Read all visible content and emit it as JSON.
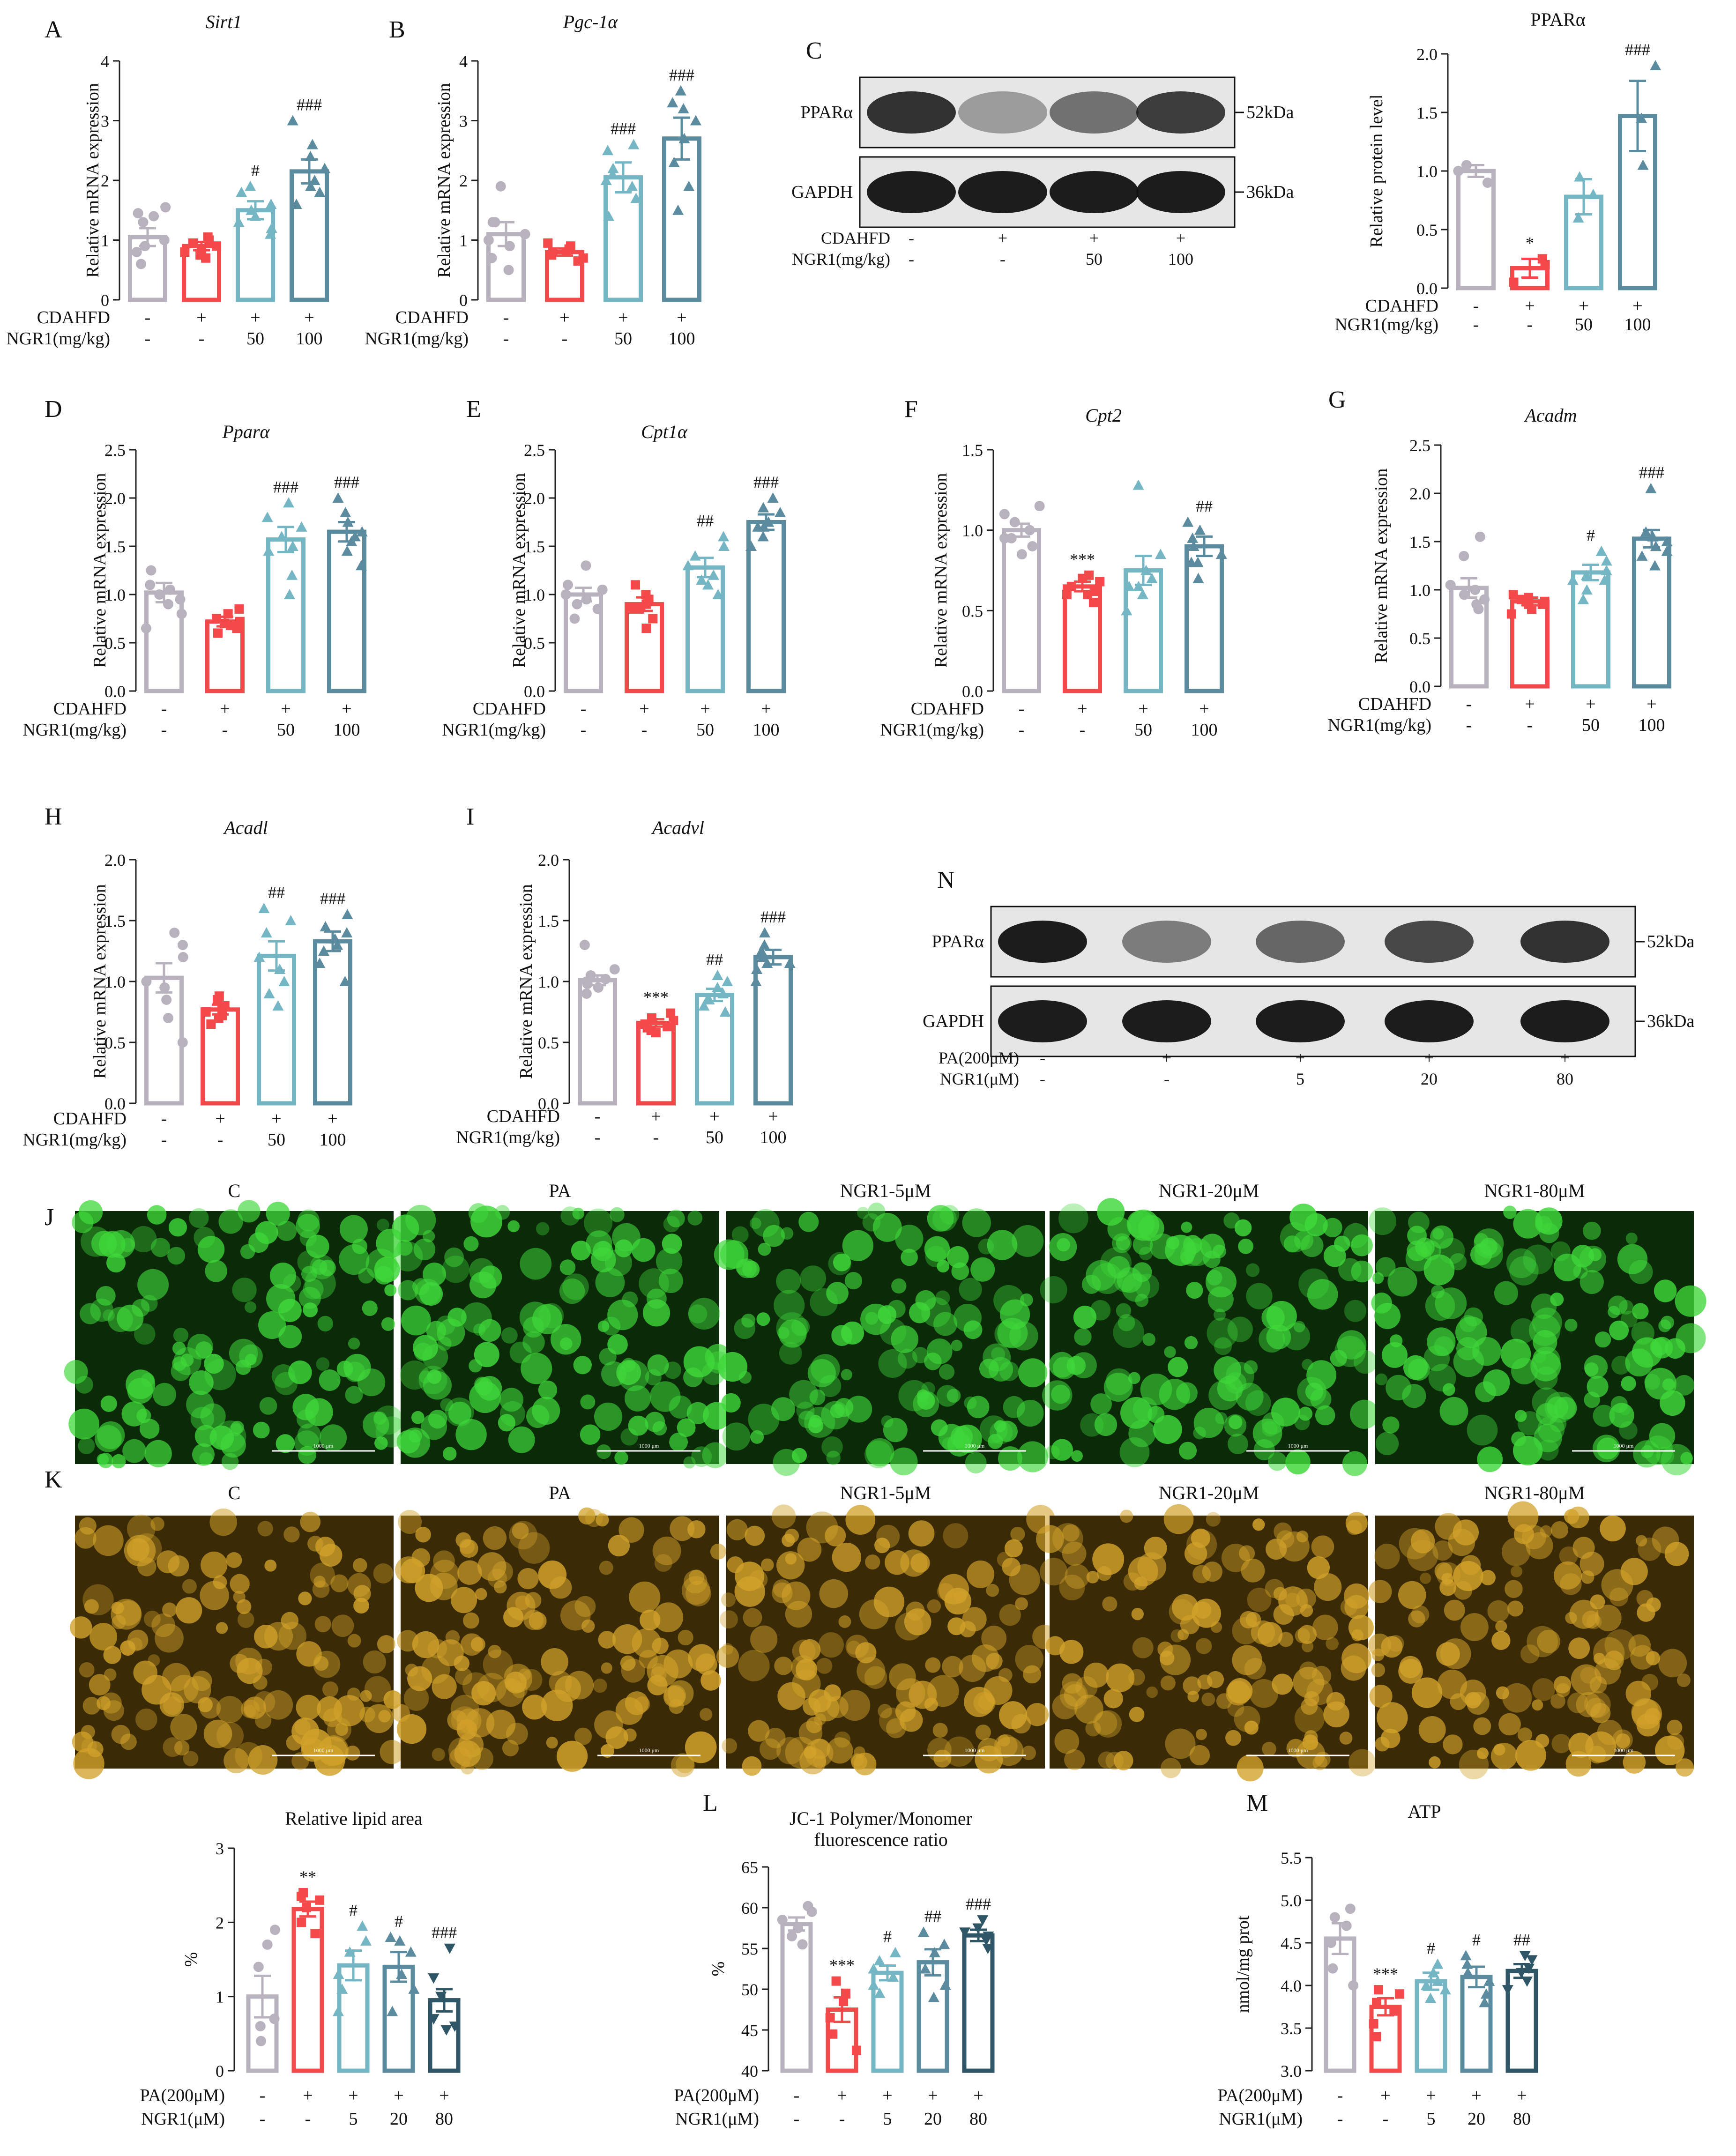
{
  "colors": {
    "c1": "#b7b2be",
    "c2": "#f4494a",
    "c3": "#75b6c4",
    "c4": "#5b8b9e",
    "c5": "#2e5666",
    "axis": "#222222"
  },
  "icons": {
    "fluorescence": "microscopy-image"
  },
  "mouse_cond": {
    "row1_label": "CDAHFD",
    "row2_label": "NGR1(mg/kg)",
    "row1": [
      "-",
      "+",
      "+",
      "+"
    ],
    "row2": [
      "-",
      "-",
      "50",
      "100"
    ]
  },
  "cell_cond": {
    "row1_label": "PA(200μM)",
    "row2_label": "NGR1(μM)",
    "row1": [
      "-",
      "+",
      "+",
      "+",
      "+"
    ],
    "row2": [
      "-",
      "-",
      "5",
      "20",
      "80"
    ]
  },
  "blot_c": {
    "letter": "C",
    "rows": [
      "PPARα",
      "GAPDH"
    ],
    "kda": [
      "52kDa",
      "36kDa"
    ],
    "cond_row1_label": "CDAHFD",
    "cond_row2_label": "NGR1(mg/kg)",
    "cond_row1": [
      "-",
      "+",
      "+",
      "+"
    ],
    "cond_row2": [
      "-",
      "-",
      "50",
      "100"
    ]
  },
  "blot_n": {
    "letter": "N",
    "rows": [
      "PPARα",
      "GAPDH"
    ],
    "kda": [
      "52kDa",
      "36kDa"
    ],
    "cond_row1_label": "PA(200μM)",
    "cond_row2_label": "NGR1(μM)",
    "cond_row1": [
      "-",
      "+",
      "+",
      "+",
      "+"
    ],
    "cond_row2": [
      "-",
      "-",
      "5",
      "20",
      "80"
    ]
  },
  "image_panels": [
    {
      "letter": "J",
      "labels": [
        "C",
        "PA",
        "NGR1-5μM",
        "NGR1-20μM",
        "NGR1-80μM"
      ],
      "scale_text": "1000 μm",
      "base": "#0a2a08",
      "accent": "#3fd83a"
    },
    {
      "letter": "K",
      "labels": [
        "C",
        "PA",
        "NGR1-5μM",
        "NGR1-20μM",
        "NGR1-80μM"
      ],
      "scale_text": "1000 μm",
      "base": "#3a2a06",
      "accent": "#d2a22a"
    }
  ],
  "chart_data": [
    {
      "id": "A",
      "type": "bar",
      "title": "Sirt1",
      "title_italic": true,
      "ylabel": "Relative mRNA expression",
      "ylim": [
        0,
        4
      ],
      "ticks": [
        "0",
        "1",
        "2",
        "3",
        "4"
      ],
      "values": [
        1.05,
        0.9,
        1.5,
        2.15
      ],
      "errors": [
        0.15,
        0.07,
        0.15,
        0.2
      ],
      "sig": [
        "",
        "",
        "#",
        "###"
      ],
      "points": [
        [
          0.6,
          0.8,
          1.0,
          1.3,
          1.4,
          1.45,
          1.55,
          0.9
        ],
        [
          0.7,
          0.8,
          0.85,
          0.9,
          0.95,
          1.0,
          1.05,
          0.75
        ],
        [
          1.1,
          1.2,
          1.3,
          1.5,
          1.6,
          1.8,
          1.9,
          1.4
        ],
        [
          1.6,
          1.8,
          2.0,
          2.2,
          2.4,
          2.6,
          3.0,
          1.9
        ]
      ],
      "conditions": "mouse"
    },
    {
      "id": "B",
      "type": "bar",
      "title": "Pgc-1α",
      "title_italic": true,
      "ylabel": "Relative mRNA expression",
      "ylim": [
        0,
        4
      ],
      "ticks": [
        "0",
        "1",
        "2",
        "3",
        "4"
      ],
      "values": [
        1.1,
        0.8,
        2.05,
        2.7
      ],
      "errors": [
        0.2,
        0.06,
        0.25,
        0.35
      ],
      "sig": [
        "",
        "",
        "###",
        "###"
      ],
      "points": [
        [
          0.5,
          0.7,
          0.9,
          1.0,
          1.1,
          1.3,
          1.9,
          1.3
        ],
        [
          0.65,
          0.7,
          0.75,
          0.8,
          0.85,
          0.9,
          0.95,
          0.8
        ],
        [
          1.4,
          1.7,
          1.9,
          2.0,
          2.2,
          2.5,
          2.6,
          2.1
        ],
        [
          1.5,
          1.9,
          2.3,
          2.7,
          3.0,
          3.2,
          3.5,
          3.3
        ]
      ],
      "conditions": "mouse"
    },
    {
      "id": "C",
      "type": "bar",
      "title": "PPARα",
      "title_italic": false,
      "ylabel": "Relative protein level",
      "ylim": [
        0,
        2
      ],
      "ticks": [
        "0.0",
        "0.5",
        "1.0",
        "1.5",
        "2.0"
      ],
      "values": [
        1.0,
        0.17,
        0.78,
        1.47
      ],
      "errors": [
        0.05,
        0.08,
        0.15,
        0.3
      ],
      "sig": [
        "",
        "*",
        "",
        "###"
      ],
      "points": [
        [
          0.9,
          1.0,
          1.05
        ],
        [
          0.05,
          0.2,
          0.25
        ],
        [
          0.6,
          0.8,
          0.95
        ],
        [
          1.05,
          1.45,
          1.9
        ]
      ],
      "conditions": "mouse"
    },
    {
      "id": "D",
      "type": "bar",
      "title": "Pparα",
      "title_italic": true,
      "ylabel": "Relative mRNA expression",
      "ylim": [
        0,
        2.5
      ],
      "ticks": [
        "0.0",
        "0.5",
        "1.0",
        "1.5",
        "2.0",
        "2.5"
      ],
      "values": [
        1.02,
        0.72,
        1.57,
        1.65
      ],
      "errors": [
        0.1,
        0.05,
        0.13,
        0.1
      ],
      "sig": [
        "",
        "",
        "###",
        "###"
      ],
      "points": [
        [
          0.65,
          0.8,
          0.95,
          1.0,
          1.05,
          1.1,
          1.25,
          0.9
        ],
        [
          0.6,
          0.65,
          0.7,
          0.72,
          0.75,
          0.8,
          0.85,
          0.68
        ],
        [
          1.0,
          1.2,
          1.45,
          1.6,
          1.7,
          1.8,
          1.95,
          1.5
        ],
        [
          1.3,
          1.45,
          1.55,
          1.65,
          1.75,
          1.85,
          2.0,
          1.6
        ]
      ],
      "conditions": "mouse"
    },
    {
      "id": "E",
      "type": "bar",
      "title": "Cpt1α",
      "title_italic": true,
      "ylabel": "Relative mRNA expression",
      "ylim": [
        0,
        2.5
      ],
      "ticks": [
        "0.0",
        "0.5",
        "1.0",
        "1.5",
        "2.0",
        "2.5"
      ],
      "values": [
        1.0,
        0.9,
        1.28,
        1.75
      ],
      "errors": [
        0.07,
        0.07,
        0.1,
        0.08
      ],
      "sig": [
        "",
        "",
        "##",
        "###"
      ],
      "points": [
        [
          0.75,
          0.85,
          0.95,
          1.0,
          1.05,
          1.1,
          1.3,
          0.9
        ],
        [
          0.65,
          0.75,
          0.85,
          0.9,
          0.95,
          1.0,
          1.1,
          0.85
        ],
        [
          1.0,
          1.1,
          1.2,
          1.3,
          1.4,
          1.5,
          1.6,
          1.15
        ],
        [
          1.5,
          1.6,
          1.7,
          1.75,
          1.85,
          1.9,
          2.0,
          1.7
        ]
      ],
      "conditions": "mouse"
    },
    {
      "id": "F",
      "type": "bar",
      "title": "Cpt2",
      "title_italic": true,
      "ylabel": "Relative mRNA expression",
      "ylim": [
        0,
        1.5
      ],
      "ticks": [
        "0.0",
        "0.5",
        "1.0",
        "1.5"
      ],
      "values": [
        1.0,
        0.65,
        0.75,
        0.9
      ],
      "errors": [
        0.04,
        0.03,
        0.09,
        0.06
      ],
      "sig": [
        "",
        "***",
        "",
        "##"
      ],
      "points": [
        [
          0.85,
          0.9,
          0.95,
          1.0,
          1.05,
          1.1,
          1.15,
          0.95
        ],
        [
          0.55,
          0.6,
          0.62,
          0.65,
          0.68,
          0.7,
          0.72,
          0.6
        ],
        [
          0.5,
          0.6,
          0.65,
          0.7,
          0.75,
          0.85,
          1.28,
          0.65
        ],
        [
          0.7,
          0.8,
          0.85,
          0.9,
          0.95,
          1.0,
          1.05,
          0.8
        ]
      ],
      "conditions": "mouse"
    },
    {
      "id": "G",
      "type": "bar",
      "title": "Acadm",
      "title_italic": true,
      "ylabel": "Relative mRNA expression",
      "ylim": [
        0,
        2.5
      ],
      "ticks": [
        "0.0",
        "0.5",
        "1.0",
        "1.5",
        "2.0",
        "2.5"
      ],
      "values": [
        1.02,
        0.88,
        1.18,
        1.53
      ],
      "errors": [
        0.1,
        0.04,
        0.08,
        0.09
      ],
      "sig": [
        "",
        "",
        "#",
        "###"
      ],
      "points": [
        [
          0.8,
          0.85,
          0.9,
          0.95,
          1.0,
          1.05,
          1.35,
          1.55
        ],
        [
          0.75,
          0.8,
          0.85,
          0.88,
          0.9,
          0.92,
          0.95,
          0.85
        ],
        [
          0.9,
          1.0,
          1.1,
          1.15,
          1.2,
          1.3,
          1.4,
          1.1
        ],
        [
          1.25,
          1.35,
          1.45,
          1.5,
          1.55,
          1.6,
          2.05,
          1.4
        ]
      ],
      "conditions": "mouse"
    },
    {
      "id": "H",
      "type": "bar",
      "title": "Acadl",
      "title_italic": true,
      "ylabel": "Relative mRNA expression",
      "ylim": [
        0,
        2
      ],
      "ticks": [
        "0.0",
        "0.5",
        "1.0",
        "1.5",
        "2.0"
      ],
      "values": [
        1.03,
        0.77,
        1.21,
        1.33
      ],
      "errors": [
        0.12,
        0.04,
        0.12,
        0.08
      ],
      "sig": [
        "",
        "",
        "##",
        "###"
      ],
      "points": [
        [
          0.5,
          0.7,
          0.85,
          1.0,
          1.2,
          1.3,
          1.4,
          0.95
        ],
        [
          0.65,
          0.7,
          0.75,
          0.78,
          0.8,
          0.85,
          0.88,
          0.72
        ],
        [
          0.8,
          0.9,
          1.0,
          1.2,
          1.4,
          1.5,
          1.6,
          1.1
        ],
        [
          1.0,
          1.15,
          1.25,
          1.35,
          1.4,
          1.45,
          1.55,
          1.3
        ]
      ],
      "conditions": "mouse"
    },
    {
      "id": "I",
      "type": "bar",
      "title": "Acadvl",
      "title_italic": true,
      "ylabel": "Relative mRNA expression",
      "ylim": [
        0,
        2
      ],
      "ticks": [
        "0.0",
        "0.5",
        "1.0",
        "1.5",
        "2.0"
      ],
      "values": [
        1.01,
        0.66,
        0.89,
        1.2
      ],
      "errors": [
        0.04,
        0.03,
        0.05,
        0.06
      ],
      "sig": [
        "",
        "***",
        "##",
        "###"
      ],
      "points": [
        [
          0.9,
          0.95,
          1.0,
          1.02,
          1.05,
          1.1,
          1.3,
          0.98
        ],
        [
          0.58,
          0.6,
          0.63,
          0.65,
          0.68,
          0.7,
          0.74,
          0.62
        ],
        [
          0.75,
          0.8,
          0.85,
          0.9,
          0.95,
          1.0,
          1.05,
          0.85
        ],
        [
          1.0,
          1.1,
          1.15,
          1.2,
          1.25,
          1.3,
          1.4,
          1.15
        ]
      ],
      "conditions": "mouse"
    },
    {
      "id": "L_lipid",
      "type": "bar",
      "title": "Relative lipid area",
      "title_italic": false,
      "ylabel": "%",
      "ylim": [
        0,
        3
      ],
      "ticks": [
        "0",
        "1",
        "2",
        "3"
      ],
      "values": [
        1.0,
        2.18,
        1.42,
        1.4,
        0.95
      ],
      "errors": [
        0.28,
        0.1,
        0.2,
        0.2,
        0.15
      ],
      "sig": [
        "",
        "**",
        "#",
        "#",
        "###"
      ],
      "points": [
        [
          0.4,
          0.6,
          0.7,
          1.4,
          1.7,
          1.9
        ],
        [
          1.85,
          2.0,
          2.2,
          2.3,
          2.35,
          2.4
        ],
        [
          0.8,
          1.1,
          1.3,
          1.6,
          1.75,
          1.95
        ],
        [
          0.8,
          1.1,
          1.3,
          1.6,
          1.75,
          1.8
        ],
        [
          0.55,
          0.6,
          0.7,
          1.0,
          1.25,
          1.65
        ]
      ],
      "conditions": "cell"
    },
    {
      "id": "L",
      "type": "bar",
      "title": "JC-1 Polymer/Monomer",
      "title2": "fluorescence ratio",
      "title_italic": false,
      "ylabel": "%",
      "ylim": [
        40,
        65
      ],
      "ticks": [
        "40",
        "45",
        "50",
        "55",
        "60",
        "65"
      ],
      "values": [
        58.0,
        47.5,
        52.0,
        53.3,
        56.6
      ],
      "errors": [
        0.8,
        1.5,
        0.9,
        1.6,
        0.7
      ],
      "sig": [
        "",
        "***",
        "#",
        "##",
        "###"
      ],
      "points": [
        [
          55.5,
          56.5,
          57.5,
          58.5,
          59.5,
          60.2
        ],
        [
          42.5,
          44.5,
          46.5,
          48.5,
          49.5,
          51.0
        ],
        [
          49.5,
          50.5,
          51.5,
          52.5,
          53.5,
          54.5
        ],
        [
          49.0,
          50.5,
          52.5,
          54.5,
          55.5,
          57.0
        ],
        [
          55.0,
          56.0,
          56.5,
          57.0,
          57.5,
          58.5
        ]
      ],
      "conditions": "cell"
    },
    {
      "id": "M",
      "type": "bar",
      "title": "ATP",
      "title_italic": false,
      "ylabel": "nmol/mg prot",
      "ylim": [
        3,
        5.5
      ],
      "ticks": [
        "3.0",
        "3.5",
        "4.0",
        "4.5",
        "5.0",
        "5.5"
      ],
      "values": [
        4.55,
        3.75,
        4.05,
        4.1,
        4.17
      ],
      "errors": [
        0.18,
        0.1,
        0.1,
        0.12,
        0.08
      ],
      "sig": [
        "",
        "***",
        "#",
        "#",
        "##"
      ],
      "points": [
        [
          4.0,
          4.2,
          4.5,
          4.7,
          4.8,
          4.9
        ],
        [
          3.4,
          3.55,
          3.7,
          3.8,
          3.9,
          3.95
        ],
        [
          3.85,
          3.95,
          4.0,
          4.05,
          4.15,
          4.25
        ],
        [
          3.8,
          3.9,
          4.05,
          4.15,
          4.25,
          4.35
        ],
        [
          3.95,
          4.05,
          4.15,
          4.2,
          4.3,
          4.35
        ]
      ],
      "conditions": "cell"
    }
  ]
}
